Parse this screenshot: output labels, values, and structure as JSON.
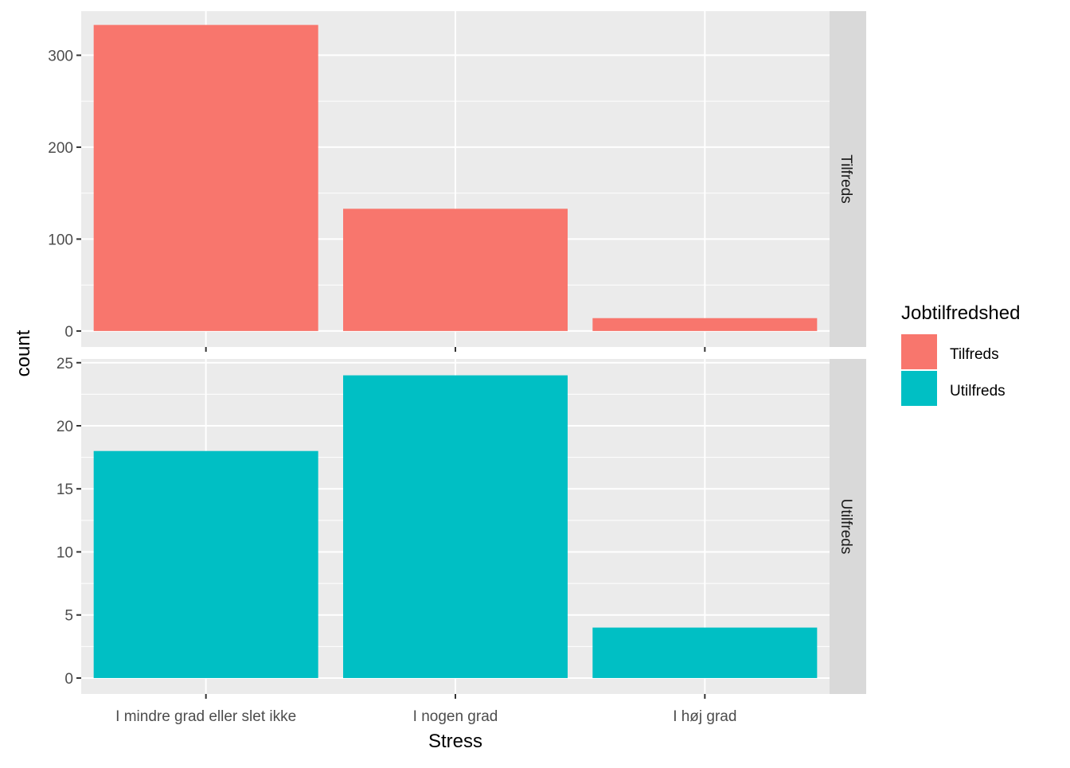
{
  "chart_data": {
    "type": "bar",
    "xlabel": "Stress",
    "ylabel": "count",
    "categories": [
      "I mindre grad eller slet ikke",
      "I nogen grad",
      "I høj grad"
    ],
    "legend": {
      "title": "Jobtilfredshed",
      "position": "right"
    },
    "grid": true,
    "facets": [
      {
        "label": "Tilfreds",
        "color": "#F8766D",
        "values": [
          333,
          133,
          14
        ],
        "ylim": [
          0,
          348
        ],
        "yticks": [
          0,
          100,
          200,
          300
        ]
      },
      {
        "label": "Utilfreds",
        "color": "#00BFC4",
        "values": [
          18,
          24,
          4
        ],
        "ylim": [
          0,
          25.3
        ],
        "yticks": [
          0,
          5,
          10,
          15,
          20,
          25
        ]
      }
    ]
  }
}
